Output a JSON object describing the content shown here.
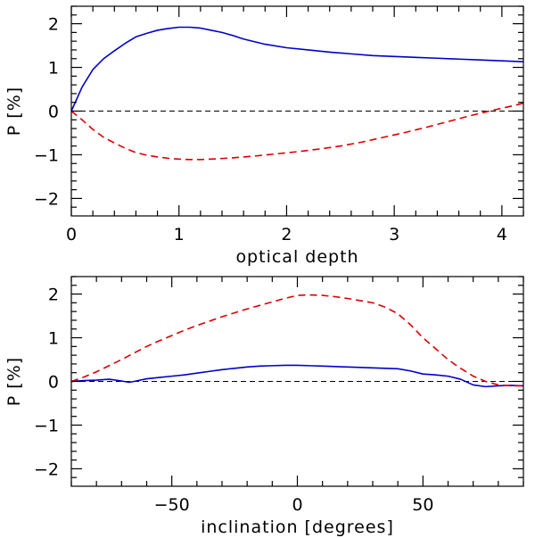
{
  "colors": {
    "solid_series": "#0000cc",
    "dashed_series": "#dd0000",
    "zero_line": "#000000"
  },
  "chart_data": [
    {
      "type": "line",
      "xlabel": "optical depth",
      "ylabel": "P [%]",
      "xlim": [
        0,
        4.2
      ],
      "ylim": [
        -2.4,
        2.4
      ],
      "xticks": [
        0,
        1,
        2,
        3,
        4
      ],
      "xtick_labels": [
        "0",
        "1",
        "2",
        "3",
        "4"
      ],
      "yticks": [
        -2,
        -1,
        0,
        1,
        2
      ],
      "ytick_labels": [
        "−2",
        "−1",
        "0",
        "1",
        "2"
      ],
      "xminor_step": 0.2,
      "yminor_step": 0.2,
      "zero_line": true,
      "series": [
        {
          "name": "solid",
          "style": "solid",
          "color": "#0000cc",
          "x": [
            0,
            0.1,
            0.2,
            0.3,
            0.4,
            0.5,
            0.6,
            0.7,
            0.8,
            0.9,
            1.0,
            1.1,
            1.2,
            1.3,
            1.4,
            1.5,
            1.6,
            1.8,
            2.0,
            2.2,
            2.4,
            2.6,
            2.8,
            3.0,
            3.2,
            3.4,
            3.6,
            3.8,
            4.0,
            4.2
          ],
          "y": [
            0,
            0.55,
            0.95,
            1.2,
            1.38,
            1.55,
            1.7,
            1.78,
            1.85,
            1.89,
            1.92,
            1.92,
            1.9,
            1.85,
            1.8,
            1.73,
            1.65,
            1.53,
            1.45,
            1.4,
            1.35,
            1.31,
            1.27,
            1.25,
            1.23,
            1.21,
            1.19,
            1.17,
            1.15,
            1.13
          ]
        },
        {
          "name": "dashed",
          "style": "dashed",
          "color": "#dd0000",
          "x": [
            0,
            0.1,
            0.2,
            0.3,
            0.4,
            0.5,
            0.6,
            0.7,
            0.8,
            0.9,
            1.0,
            1.1,
            1.2,
            1.3,
            1.5,
            1.7,
            1.9,
            2.1,
            2.3,
            2.5,
            2.7,
            2.9,
            3.1,
            3.3,
            3.5,
            3.7,
            3.9,
            4.1,
            4.2
          ],
          "y": [
            0,
            -0.2,
            -0.42,
            -0.6,
            -0.73,
            -0.85,
            -0.95,
            -1.01,
            -1.05,
            -1.08,
            -1.1,
            -1.11,
            -1.11,
            -1.1,
            -1.07,
            -1.03,
            -0.98,
            -0.93,
            -0.87,
            -0.8,
            -0.71,
            -0.6,
            -0.49,
            -0.37,
            -0.24,
            -0.11,
            0.01,
            0.12,
            0.18
          ]
        }
      ]
    },
    {
      "type": "line",
      "xlabel": "inclination [degrees]",
      "ylabel": "P [%]",
      "xlim": [
        -90,
        90
      ],
      "ylim": [
        -2.4,
        2.4
      ],
      "xticks": [
        -50,
        0,
        50
      ],
      "xtick_labels": [
        "−50",
        "0",
        "50"
      ],
      "yticks": [
        -2,
        -1,
        0,
        1,
        2
      ],
      "ytick_labels": [
        "−2",
        "−1",
        "0",
        "1",
        "2"
      ],
      "xminor_step": 10,
      "yminor_step": 0.2,
      "zero_line": true,
      "series": [
        {
          "name": "solid",
          "style": "solid",
          "color": "#0000cc",
          "x": [
            -90,
            -85,
            -80,
            -75,
            -70,
            -67,
            -65,
            -60,
            -55,
            -50,
            -45,
            -40,
            -35,
            -30,
            -25,
            -20,
            -15,
            -10,
            -5,
            0,
            5,
            10,
            15,
            20,
            25,
            30,
            35,
            40,
            45,
            50,
            55,
            60,
            65,
            70,
            75,
            80,
            85,
            90
          ],
          "y": [
            0,
            0.02,
            0.03,
            0.05,
            0.01,
            -0.02,
            0.0,
            0.06,
            0.09,
            0.12,
            0.15,
            0.19,
            0.23,
            0.27,
            0.3,
            0.33,
            0.35,
            0.36,
            0.37,
            0.37,
            0.36,
            0.35,
            0.34,
            0.33,
            0.32,
            0.31,
            0.3,
            0.29,
            0.24,
            0.17,
            0.15,
            0.12,
            0.05,
            -0.08,
            -0.12,
            -0.1,
            -0.09,
            -0.1
          ]
        },
        {
          "name": "dashed",
          "style": "dashed",
          "color": "#dd0000",
          "x": [
            -90,
            -85,
            -80,
            -75,
            -70,
            -65,
            -60,
            -55,
            -50,
            -45,
            -40,
            -35,
            -30,
            -25,
            -20,
            -15,
            -10,
            -5,
            0,
            5,
            10,
            15,
            20,
            25,
            30,
            35,
            40,
            45,
            50,
            55,
            60,
            65,
            70,
            75,
            80,
            85,
            90
          ],
          "y": [
            0,
            0.1,
            0.22,
            0.36,
            0.5,
            0.65,
            0.8,
            0.93,
            1.05,
            1.17,
            1.28,
            1.38,
            1.48,
            1.57,
            1.66,
            1.74,
            1.82,
            1.9,
            1.97,
            1.98,
            1.97,
            1.94,
            1.9,
            1.85,
            1.8,
            1.7,
            1.55,
            1.3,
            1.0,
            0.75,
            0.5,
            0.3,
            0.12,
            0.0,
            -0.08,
            -0.1,
            -0.1
          ]
        }
      ]
    }
  ]
}
